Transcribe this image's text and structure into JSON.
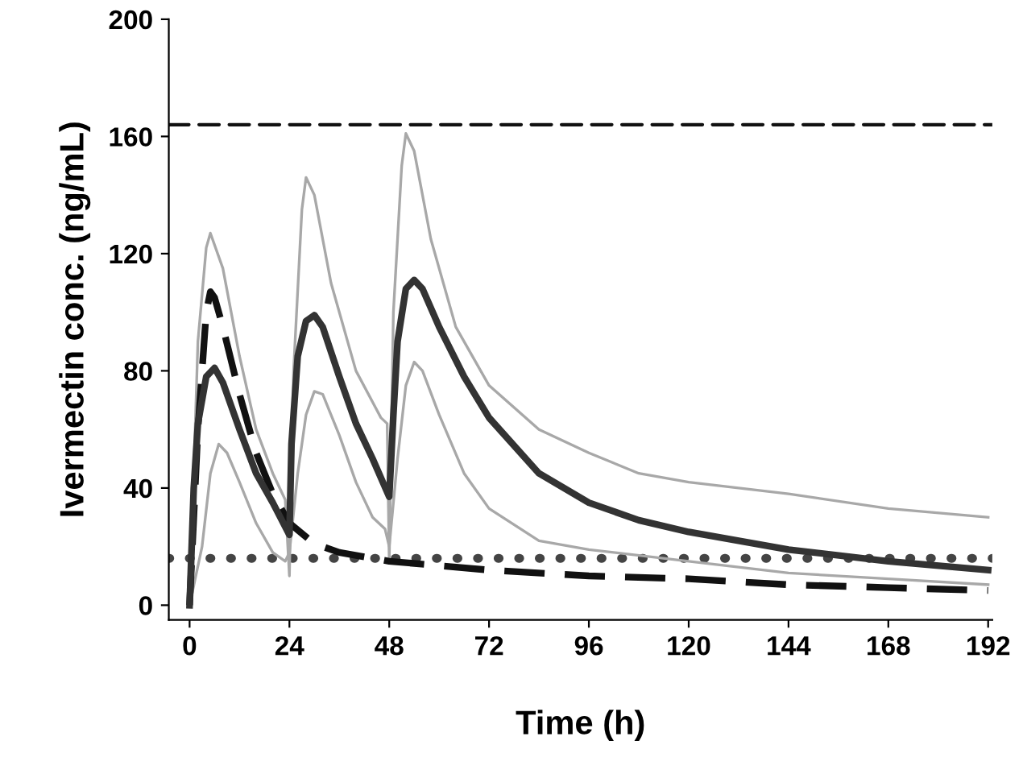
{
  "chart_data": {
    "type": "line",
    "xlabel": "Time (h)",
    "ylabel": "Ivermectin conc. (ng/mL)",
    "xlim": [
      -5,
      193
    ],
    "ylim": [
      -5,
      200
    ],
    "xticks": [
      0,
      24,
      48,
      72,
      96,
      120,
      144,
      168,
      192
    ],
    "yticks": [
      0,
      40,
      80,
      120,
      160,
      200
    ],
    "grid": false,
    "legend": false,
    "marker": "none",
    "series": [
      {
        "color": "#a8a8a8",
        "line_style": "solid",
        "x": [
          0,
          2,
          4,
          5,
          8,
          12,
          16,
          20,
          23,
          24,
          25,
          27,
          28,
          30,
          34,
          40,
          46,
          47.5,
          48,
          49,
          51,
          52,
          54,
          58,
          64,
          72,
          84,
          96,
          108,
          120,
          144,
          168,
          192
        ],
        "values": [
          0,
          90,
          122,
          127,
          115,
          85,
          60,
          45,
          36,
          10,
          80,
          135,
          146,
          140,
          110,
          80,
          64,
          62,
          15,
          100,
          150,
          161,
          155,
          125,
          95,
          75,
          60,
          52,
          45,
          42,
          38,
          33,
          30
        ]
      },
      {
        "color": "#a8a8a8",
        "line_style": "solid",
        "x": [
          0,
          3,
          5,
          7,
          9,
          12,
          16,
          20,
          23,
          24,
          26,
          28,
          30,
          32,
          36,
          40,
          44,
          47,
          48,
          50,
          52,
          54,
          56,
          60,
          66,
          72,
          84,
          96,
          120,
          144,
          168,
          192
        ],
        "values": [
          0,
          20,
          45,
          55,
          52,
          42,
          28,
          18,
          15,
          18,
          45,
          65,
          73,
          72,
          58,
          42,
          30,
          26,
          20,
          50,
          75,
          83,
          80,
          65,
          45,
          33,
          22,
          19,
          15,
          11,
          9,
          7
        ]
      },
      {
        "color": "#111111",
        "line_style": "dashed",
        "x": [
          0,
          2,
          4,
          5,
          6,
          8,
          12,
          16,
          20,
          24,
          30,
          36,
          48,
          72,
          96,
          120,
          144,
          168,
          192
        ],
        "values": [
          0,
          60,
          100,
          107,
          105,
          95,
          72,
          52,
          38,
          28,
          21,
          18,
          15,
          12,
          10,
          9,
          7,
          6,
          5
        ]
      },
      {
        "color": "#333333",
        "line_style": "solid",
        "x": [
          0,
          1,
          2,
          4,
          6,
          8,
          12,
          16,
          20,
          24,
          24.5,
          26,
          28,
          30,
          32,
          36,
          40,
          44,
          48,
          49,
          50,
          52,
          54,
          56,
          60,
          66,
          72,
          84,
          96,
          108,
          120,
          144,
          168,
          192
        ],
        "values": [
          0,
          40,
          62,
          78,
          81,
          76,
          60,
          45,
          35,
          24,
          55,
          85,
          97,
          99,
          95,
          78,
          62,
          50,
          37,
          65,
          90,
          108,
          111,
          108,
          95,
          78,
          64,
          45,
          35,
          29,
          25,
          19,
          15,
          12
        ]
      }
    ],
    "ref_lines": [
      {
        "axis": "y",
        "value": 16,
        "line_style": "dotted",
        "color": "#444444"
      },
      {
        "axis": "y",
        "value": 164,
        "line_style": "dashed",
        "color": "#111111"
      }
    ]
  }
}
